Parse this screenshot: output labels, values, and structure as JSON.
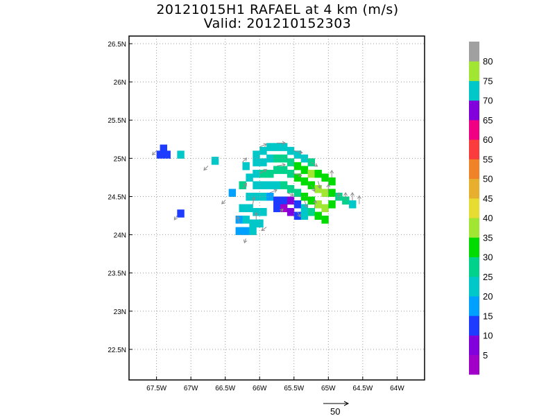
{
  "title": {
    "line1": "20121015H1 RAFAEL at 4 km (m/s)",
    "line2": "Valid: 201210152303"
  },
  "map": {
    "lon_range": [
      -67.9,
      -63.6
    ],
    "lat_range": [
      22.1,
      26.6
    ],
    "x_ticks": [
      {
        "lon": -67.5,
        "label": "67.5W"
      },
      {
        "lon": -67.0,
        "label": "67W"
      },
      {
        "lon": -66.5,
        "label": "66.5W"
      },
      {
        "lon": -66.0,
        "label": "66W"
      },
      {
        "lon": -65.5,
        "label": "65.5W"
      },
      {
        "lon": -65.0,
        "label": "65W"
      },
      {
        "lon": -64.5,
        "label": "64.5W"
      },
      {
        "lon": -64.0,
        "label": "64W"
      }
    ],
    "y_ticks": [
      {
        "lat": 22.5,
        "label": "22.5N"
      },
      {
        "lat": 23.0,
        "label": "23N"
      },
      {
        "lat": 23.5,
        "label": "23.5N"
      },
      {
        "lat": 24.0,
        "label": "24N"
      },
      {
        "lat": 24.5,
        "label": "24.5N"
      },
      {
        "lat": 25.0,
        "label": "25N"
      },
      {
        "lat": 25.5,
        "label": "25.5N"
      },
      {
        "lat": 26.0,
        "label": "26N"
      },
      {
        "lat": 26.5,
        "label": "26.5N"
      }
    ],
    "grid": "dotted"
  },
  "colorbar": {
    "bands": [
      {
        "color": "#a000c8",
        "label": "5"
      },
      {
        "color": "#8200dc",
        "label": "10"
      },
      {
        "color": "#1e3cff",
        "label": "15"
      },
      {
        "color": "#00a0ff",
        "label": "20"
      },
      {
        "color": "#00c8c8",
        "label": "25"
      },
      {
        "color": "#00d28c",
        "label": "30"
      },
      {
        "color": "#00dc00",
        "label": "35"
      },
      {
        "color": "#a0e632",
        "label": "40"
      },
      {
        "color": "#e6dc32",
        "label": "45"
      },
      {
        "color": "#e6af2d",
        "label": "50"
      },
      {
        "color": "#f08228",
        "label": "55"
      },
      {
        "color": "#fa3c3c",
        "label": "60"
      },
      {
        "color": "#f00082",
        "label": "65"
      },
      {
        "color": "#8200dc",
        "label": "70"
      },
      {
        "color": "#00c8c8",
        "label": "75"
      },
      {
        "color": "#a0e632",
        "label": "80"
      },
      {
        "color": "#a0a0a0",
        "label": ""
      }
    ]
  },
  "reference_vector": {
    "label": "50",
    "magnitude": 50
  },
  "chart_data": {
    "type": "heatmap",
    "title": "20121015H1 RAFAEL at 4 km (m/s)",
    "subtitle": "Valid: 201210152303",
    "xlim": [
      -67.9,
      -63.6
    ],
    "ylim": [
      22.1,
      26.6
    ],
    "cell_deg": 0.1,
    "cells": [
      {
        "lon": -67.45,
        "lat": 25.05,
        "v": 15
      },
      {
        "lon": -67.35,
        "lat": 25.05,
        "v": 15
      },
      {
        "lon": -67.4,
        "lat": 25.13,
        "v": 15
      },
      {
        "lon": -67.15,
        "lat": 25.05,
        "v": 25
      },
      {
        "lon": -66.65,
        "lat": 24.97,
        "v": 25
      },
      {
        "lon": -67.15,
        "lat": 24.28,
        "v": 15
      },
      {
        "lon": -66.4,
        "lat": 24.55,
        "v": 20
      },
      {
        "lon": -66.25,
        "lat": 24.65,
        "v": 30
      },
      {
        "lon": -66.15,
        "lat": 24.75,
        "v": 25
      },
      {
        "lon": -66.2,
        "lat": 24.9,
        "v": 25
      },
      {
        "lon": -66.05,
        "lat": 25.05,
        "v": 25
      },
      {
        "lon": -65.95,
        "lat": 25.1,
        "v": 25
      },
      {
        "lon": -65.85,
        "lat": 25.15,
        "v": 25
      },
      {
        "lon": -65.75,
        "lat": 25.15,
        "v": 25
      },
      {
        "lon": -65.65,
        "lat": 25.15,
        "v": 25
      },
      {
        "lon": -65.55,
        "lat": 25.1,
        "v": 25
      },
      {
        "lon": -65.45,
        "lat": 25.05,
        "v": 25
      },
      {
        "lon": -65.35,
        "lat": 25.0,
        "v": 25
      },
      {
        "lon": -65.25,
        "lat": 24.95,
        "v": 30
      },
      {
        "lon": -66.05,
        "lat": 24.95,
        "v": 25
      },
      {
        "lon": -65.95,
        "lat": 24.95,
        "v": 25
      },
      {
        "lon": -65.85,
        "lat": 25.0,
        "v": 25
      },
      {
        "lon": -65.75,
        "lat": 25.0,
        "v": 30
      },
      {
        "lon": -65.65,
        "lat": 25.0,
        "v": 30
      },
      {
        "lon": -65.55,
        "lat": 24.95,
        "v": 30
      },
      {
        "lon": -65.45,
        "lat": 24.9,
        "v": 35
      },
      {
        "lon": -65.35,
        "lat": 24.85,
        "v": 35
      },
      {
        "lon": -65.25,
        "lat": 24.8,
        "v": 40
      },
      {
        "lon": -65.15,
        "lat": 24.8,
        "v": 35
      },
      {
        "lon": -65.05,
        "lat": 24.75,
        "v": 35
      },
      {
        "lon": -64.95,
        "lat": 24.7,
        "v": 35
      },
      {
        "lon": -66.05,
        "lat": 24.8,
        "v": 25
      },
      {
        "lon": -65.95,
        "lat": 24.8,
        "v": 30
      },
      {
        "lon": -65.85,
        "lat": 24.8,
        "v": 30
      },
      {
        "lon": -65.75,
        "lat": 24.85,
        "v": 30
      },
      {
        "lon": -65.65,
        "lat": 24.85,
        "v": 30
      },
      {
        "lon": -65.55,
        "lat": 24.8,
        "v": 30
      },
      {
        "lon": -65.45,
        "lat": 24.75,
        "v": 35
      },
      {
        "lon": -65.35,
        "lat": 24.7,
        "v": 35
      },
      {
        "lon": -65.25,
        "lat": 24.65,
        "v": 35
      },
      {
        "lon": -65.15,
        "lat": 24.6,
        "v": 40
      },
      {
        "lon": -65.05,
        "lat": 24.55,
        "v": 40
      },
      {
        "lon": -64.95,
        "lat": 24.55,
        "v": 35
      },
      {
        "lon": -64.85,
        "lat": 24.5,
        "v": 30
      },
      {
        "lon": -64.75,
        "lat": 24.45,
        "v": 30
      },
      {
        "lon": -64.65,
        "lat": 24.4,
        "v": 25
      },
      {
        "lon": -66.05,
        "lat": 24.65,
        "v": 25
      },
      {
        "lon": -65.95,
        "lat": 24.65,
        "v": 25
      },
      {
        "lon": -65.85,
        "lat": 24.65,
        "v": 25
      },
      {
        "lon": -65.75,
        "lat": 24.65,
        "v": 25
      },
      {
        "lon": -65.65,
        "lat": 24.65,
        "v": 30
      },
      {
        "lon": -65.55,
        "lat": 24.6,
        "v": 30
      },
      {
        "lon": -65.45,
        "lat": 24.55,
        "v": 30
      },
      {
        "lon": -65.35,
        "lat": 24.5,
        "v": 35
      },
      {
        "lon": -65.25,
        "lat": 24.45,
        "v": 35
      },
      {
        "lon": -65.15,
        "lat": 24.4,
        "v": 40
      },
      {
        "lon": -65.05,
        "lat": 24.35,
        "v": 40
      },
      {
        "lon": -64.95,
        "lat": 24.4,
        "v": 35
      },
      {
        "lon": -66.15,
        "lat": 24.5,
        "v": 25
      },
      {
        "lon": -66.05,
        "lat": 24.5,
        "v": 25
      },
      {
        "lon": -65.95,
        "lat": 24.5,
        "v": 25
      },
      {
        "lon": -65.85,
        "lat": 24.5,
        "v": 20
      },
      {
        "lon": -65.75,
        "lat": 24.45,
        "v": 15
      },
      {
        "lon": -65.65,
        "lat": 24.45,
        "v": 15
      },
      {
        "lon": -65.55,
        "lat": 24.45,
        "v": 10
      },
      {
        "lon": -65.45,
        "lat": 24.4,
        "v": 15
      },
      {
        "lon": -65.35,
        "lat": 24.35,
        "v": 25
      },
      {
        "lon": -65.25,
        "lat": 24.3,
        "v": 30
      },
      {
        "lon": -65.15,
        "lat": 24.25,
        "v": 35
      },
      {
        "lon": -65.05,
        "lat": 24.2,
        "v": 35
      },
      {
        "lon": -66.25,
        "lat": 24.35,
        "v": 25
      },
      {
        "lon": -66.15,
        "lat": 24.35,
        "v": 25
      },
      {
        "lon": -66.05,
        "lat": 24.3,
        "v": 25
      },
      {
        "lon": -65.95,
        "lat": 24.3,
        "v": 25
      },
      {
        "lon": -65.75,
        "lat": 24.35,
        "v": 15
      },
      {
        "lon": -65.65,
        "lat": 24.35,
        "v": 5
      },
      {
        "lon": -65.55,
        "lat": 24.3,
        "v": 10
      },
      {
        "lon": -65.45,
        "lat": 24.25,
        "v": 15
      },
      {
        "lon": -65.35,
        "lat": 24.25,
        "v": 25
      },
      {
        "lon": -66.3,
        "lat": 24.2,
        "v": 20
      },
      {
        "lon": -66.2,
        "lat": 24.2,
        "v": 25
      },
      {
        "lon": -66.1,
        "lat": 24.15,
        "v": 25
      },
      {
        "lon": -66.0,
        "lat": 24.15,
        "v": 25
      },
      {
        "lon": -66.3,
        "lat": 24.05,
        "v": 20
      },
      {
        "lon": -66.2,
        "lat": 24.05,
        "v": 20
      },
      {
        "lon": -66.1,
        "lat": 24.05,
        "v": 25
      }
    ],
    "vectors": [
      {
        "lon": -67.5,
        "lat": 25.1,
        "u": -6,
        "v": -6
      },
      {
        "lon": -66.75,
        "lat": 24.9,
        "u": -6,
        "v": -6
      },
      {
        "lon": -67.2,
        "lat": 24.25,
        "u": -4,
        "v": -6
      },
      {
        "lon": -66.5,
        "lat": 24.45,
        "u": -5,
        "v": -5
      },
      {
        "lon": -66.25,
        "lat": 24.95,
        "u": 6,
        "v": 6
      },
      {
        "lon": -66.0,
        "lat": 25.15,
        "u": 10,
        "v": 4
      },
      {
        "lon": -65.75,
        "lat": 25.2,
        "u": 12,
        "v": 0
      },
      {
        "lon": -65.5,
        "lat": 25.1,
        "u": 12,
        "v": -3
      },
      {
        "lon": -65.25,
        "lat": 24.95,
        "u": 9,
        "v": -6
      },
      {
        "lon": -66.25,
        "lat": 24.6,
        "u": 6,
        "v": 8
      },
      {
        "lon": -66.0,
        "lat": 24.8,
        "u": 10,
        "v": 6
      },
      {
        "lon": -65.75,
        "lat": 24.9,
        "u": 12,
        "v": 2
      },
      {
        "lon": -65.5,
        "lat": 24.8,
        "u": 11,
        "v": -3
      },
      {
        "lon": -65.25,
        "lat": 24.65,
        "u": 5,
        "v": -9
      },
      {
        "lon": -65.0,
        "lat": 24.55,
        "u": 0,
        "v": 12
      },
      {
        "lon": -64.85,
        "lat": 24.45,
        "u": 0,
        "v": 11
      },
      {
        "lon": -64.75,
        "lat": 24.45,
        "u": 0,
        "v": 11
      },
      {
        "lon": -64.65,
        "lat": 24.45,
        "u": 0,
        "v": 11
      },
      {
        "lon": -64.55,
        "lat": 24.4,
        "u": 0,
        "v": 12
      },
      {
        "lon": -66.1,
        "lat": 24.4,
        "u": 2,
        "v": 10
      },
      {
        "lon": -65.85,
        "lat": 24.55,
        "u": 10,
        "v": 4
      },
      {
        "lon": -65.6,
        "lat": 24.55,
        "u": 9,
        "v": -4
      },
      {
        "lon": -65.35,
        "lat": 24.45,
        "u": 4,
        "v": -10
      },
      {
        "lon": -65.2,
        "lat": 24.35,
        "u": 1,
        "v": 11
      },
      {
        "lon": -66.3,
        "lat": 24.15,
        "u": -2,
        "v": 10
      },
      {
        "lon": -66.05,
        "lat": 24.2,
        "u": 0,
        "v": 10
      },
      {
        "lon": -65.9,
        "lat": 24.1,
        "u": -7,
        "v": -5
      },
      {
        "lon": -66.2,
        "lat": 23.95,
        "u": -2,
        "v": -6
      },
      {
        "lon": -65.7,
        "lat": 24.3,
        "u": 4,
        "v": 4
      },
      {
        "lon": -65.45,
        "lat": 24.3,
        "u": 4,
        "v": -7
      },
      {
        "lon": -65.15,
        "lat": 24.7,
        "u": 3,
        "v": -10
      },
      {
        "lon": -64.95,
        "lat": 24.75,
        "u": 0,
        "v": 10
      }
    ]
  }
}
